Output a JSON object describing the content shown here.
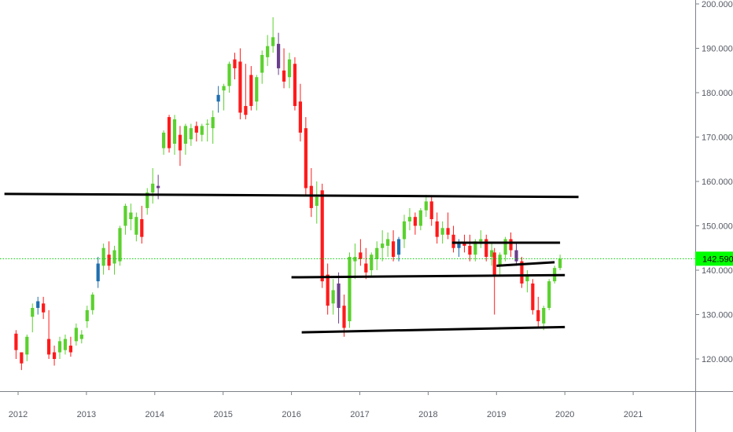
{
  "chart_data": {
    "type": "candlestick",
    "title": "",
    "xlabel": "",
    "ylabel": "",
    "x_ticks": [
      "2012",
      "2013",
      "2014",
      "2015",
      "2016",
      "2017",
      "2018",
      "2019",
      "2020",
      "2021"
    ],
    "y_ticks": [
      "120.000",
      "130.000",
      "140.000",
      "150.000",
      "160.000",
      "170.000",
      "180.000",
      "190.000",
      "200.000"
    ],
    "ylim": [
      112.5,
      200.9
    ],
    "xlim": [
      2011.8,
      2022.0
    ],
    "grid": false,
    "last_price": 142.59,
    "last_price_label": "142.590",
    "colors": {
      "up": "#5bd12e",
      "down": "#ff1a1a",
      "up_dark": "#1f6fb0",
      "down_dark": "#6b3e8c",
      "support_line": "#000000",
      "price_line": "#00cc00",
      "price_tag": "#00ff00"
    },
    "support_lines": [
      {
        "x": [
          2011.8,
          2020.2
        ],
        "y": [
          157.2,
          156.5
        ]
      },
      {
        "x": [
          2016.0,
          2020.0
        ],
        "y": [
          138.4,
          138.9
        ]
      },
      {
        "x": [
          2016.15,
          2020.0
        ],
        "y": [
          126.0,
          127.2
        ]
      },
      {
        "x": [
          2018.35,
          2019.93
        ],
        "y": [
          146.2,
          146.2
        ]
      },
      {
        "x": [
          2019.0,
          2019.85
        ],
        "y": [
          141.0,
          141.8
        ]
      }
    ],
    "candles": [
      [
        2011.97,
        125.7,
        126.5,
        120.0,
        122.0
      ],
      [
        2012.05,
        121.5,
        121.0,
        117.5,
        119.0
      ],
      [
        2012.13,
        121.0,
        125.5,
        119.5,
        125.0
      ],
      [
        2012.21,
        129.5,
        132.5,
        126.0,
        131.5
      ],
      [
        2012.29,
        131.5,
        134.0,
        130.0,
        133.0
      ],
      [
        2012.37,
        132.5,
        134.0,
        129.0,
        130.5
      ],
      [
        2012.45,
        124.5,
        131.0,
        120.0,
        121.0
      ],
      [
        2012.53,
        121.5,
        123.0,
        118.5,
        120.0
      ],
      [
        2012.61,
        121.5,
        125.0,
        120.0,
        124.0
      ],
      [
        2012.69,
        122.0,
        125.5,
        121.0,
        124.5
      ],
      [
        2012.77,
        123.0,
        125.0,
        120.5,
        121.5
      ],
      [
        2012.85,
        124.0,
        128.0,
        123.0,
        127.0
      ],
      [
        2012.93,
        124.5,
        126.5,
        123.5,
        125.5
      ],
      [
        2013.01,
        128.5,
        132.0,
        127.0,
        131.0
      ],
      [
        2013.09,
        131.0,
        135.0,
        130.0,
        134.5
      ],
      [
        2013.17,
        137.5,
        143.0,
        136.0,
        141.5
      ],
      [
        2013.25,
        141.0,
        146.0,
        139.0,
        145.0
      ],
      [
        2013.33,
        143.5,
        146.5,
        140.0,
        141.0
      ],
      [
        2013.41,
        141.5,
        145.5,
        139.0,
        144.5
      ],
      [
        2013.49,
        142.0,
        150.0,
        141.0,
        149.5
      ],
      [
        2013.57,
        150.0,
        155.0,
        148.0,
        154.5
      ],
      [
        2013.65,
        151.5,
        155.0,
        149.0,
        153.0
      ],
      [
        2013.73,
        148.0,
        153.0,
        146.5,
        152.0
      ],
      [
        2013.81,
        151.5,
        154.5,
        146.0,
        147.5
      ],
      [
        2013.89,
        154.0,
        158.5,
        152.5,
        157.5
      ],
      [
        2013.97,
        157.5,
        163.0,
        155.0,
        159.5
      ],
      [
        2014.05,
        159.0,
        161.5,
        156.0,
        158.5
      ],
      [
        2014.13,
        167.5,
        171.5,
        166.0,
        171.0
      ],
      [
        2014.21,
        174.5,
        175.0,
        166.5,
        167.5
      ],
      [
        2014.29,
        168.5,
        175.0,
        166.0,
        174.0
      ],
      [
        2014.37,
        170.5,
        172.5,
        163.5,
        167.0
      ],
      [
        2014.45,
        168.5,
        173.0,
        166.0,
        172.5
      ],
      [
        2014.53,
        169.5,
        173.0,
        168.0,
        172.0
      ],
      [
        2014.61,
        172.5,
        173.5,
        169.0,
        171.0
      ],
      [
        2014.69,
        170.5,
        173.0,
        169.0,
        172.5
      ],
      [
        2014.77,
        173.0,
        174.0,
        169.0,
        173.0
      ],
      [
        2014.85,
        172.0,
        176.0,
        168.5,
        174.5
      ],
      [
        2014.93,
        178.0,
        181.5,
        175.5,
        179.5
      ],
      [
        2015.01,
        180.5,
        182.0,
        176.0,
        181.5
      ],
      [
        2015.09,
        181.5,
        187.0,
        180.0,
        186.5
      ],
      [
        2015.17,
        187.5,
        189.0,
        183.0,
        185.5
      ],
      [
        2015.25,
        187.0,
        190.0,
        174.0,
        175.5
      ],
      [
        2015.33,
        177.0,
        186.5,
        174.0,
        175.0
      ],
      [
        2015.41,
        184.0,
        186.0,
        176.0,
        177.0
      ],
      [
        2015.49,
        178.0,
        184.0,
        176.0,
        183.5
      ],
      [
        2015.57,
        184.5,
        189.5,
        182.0,
        188.5
      ],
      [
        2015.65,
        188.0,
        193.0,
        186.0,
        190.5
      ],
      [
        2015.73,
        190.5,
        197.0,
        189.0,
        192.5
      ],
      [
        2015.81,
        191.0,
        193.5,
        184.0,
        185.5
      ],
      [
        2015.89,
        185.0,
        190.0,
        181.0,
        182.5
      ],
      [
        2015.97,
        183.5,
        189.0,
        181.0,
        187.5
      ],
      [
        2016.05,
        186.5,
        188.0,
        176.0,
        177.0
      ],
      [
        2016.13,
        178.0,
        182.0,
        169.0,
        171.0
      ],
      [
        2016.21,
        172.0,
        174.5,
        157.0,
        158.5
      ],
      [
        2016.29,
        159.0,
        163.0,
        152.0,
        154.0
      ],
      [
        2016.37,
        154.5,
        160.0,
        150.5,
        156.5
      ],
      [
        2016.45,
        158.0,
        159.5,
        136.0,
        137.5
      ],
      [
        2016.53,
        139.0,
        141.5,
        130.0,
        132.0
      ],
      [
        2016.61,
        132.5,
        138.0,
        130.0,
        135.5
      ],
      [
        2016.69,
        137.0,
        139.5,
        128.0,
        131.5
      ],
      [
        2016.77,
        132.0,
        134.5,
        125.0,
        127.0
      ],
      [
        2016.85,
        128.5,
        144.0,
        127.0,
        143.0
      ],
      [
        2016.93,
        142.0,
        146.0,
        138.0,
        143.0
      ],
      [
        2017.01,
        144.0,
        147.0,
        141.0,
        142.5
      ],
      [
        2017.09,
        141.5,
        145.0,
        138.0,
        139.5
      ],
      [
        2017.17,
        140.0,
        144.0,
        138.5,
        143.5
      ],
      [
        2017.25,
        142.5,
        146.5,
        140.0,
        145.0
      ],
      [
        2017.33,
        145.0,
        149.0,
        142.0,
        146.0
      ],
      [
        2017.41,
        145.5,
        148.5,
        143.0,
        147.0
      ],
      [
        2017.49,
        146.5,
        149.0,
        142.0,
        143.0
      ],
      [
        2017.57,
        143.5,
        147.5,
        142.0,
        147.0
      ],
      [
        2017.65,
        147.0,
        152.5,
        145.0,
        151.0
      ],
      [
        2017.73,
        151.0,
        154.0,
        149.0,
        152.0
      ],
      [
        2017.81,
        152.0,
        153.0,
        148.0,
        150.0
      ],
      [
        2017.89,
        150.0,
        154.0,
        149.0,
        153.5
      ],
      [
        2017.97,
        153.5,
        157.0,
        152.0,
        155.5
      ],
      [
        2018.05,
        155.5,
        156.5,
        150.0,
        151.5
      ],
      [
        2018.13,
        151.0,
        153.0,
        146.0,
        147.5
      ],
      [
        2018.21,
        148.0,
        151.0,
        146.0,
        149.5
      ],
      [
        2018.29,
        149.5,
        153.0,
        147.0,
        148.0
      ],
      [
        2018.37,
        148.0,
        150.0,
        144.0,
        145.0
      ],
      [
        2018.45,
        145.0,
        147.0,
        143.0,
        146.0
      ],
      [
        2018.53,
        146.0,
        148.0,
        144.0,
        145.5
      ],
      [
        2018.61,
        145.5,
        148.0,
        142.0,
        143.5
      ],
      [
        2018.69,
        143.5,
        147.0,
        142.0,
        146.5
      ],
      [
        2018.77,
        146.5,
        149.0,
        145.0,
        147.0
      ],
      [
        2018.85,
        147.0,
        148.0,
        142.0,
        143.0
      ],
      [
        2018.93,
        143.0,
        146.0,
        141.0,
        144.5
      ],
      [
        2018.97,
        144.0,
        145.0,
        130.0,
        139.0
      ],
      [
        2019.05,
        141.0,
        144.0,
        139.0,
        143.5
      ],
      [
        2019.13,
        143.5,
        147.5,
        142.0,
        147.0
      ],
      [
        2019.21,
        147.0,
        148.5,
        143.0,
        144.5
      ],
      [
        2019.29,
        144.5,
        146.0,
        141.0,
        142.0
      ],
      [
        2019.37,
        142.0,
        143.0,
        136.0,
        137.0
      ],
      [
        2019.45,
        137.5,
        140.0,
        135.0,
        139.0
      ],
      [
        2019.53,
        137.0,
        138.0,
        130.0,
        131.0
      ],
      [
        2019.61,
        131.0,
        134.0,
        127.0,
        128.5
      ],
      [
        2019.69,
        128.0,
        132.0,
        126.5,
        131.5
      ],
      [
        2019.77,
        131.5,
        138.0,
        131.0,
        137.5
      ],
      [
        2019.85,
        137.5,
        141.0,
        137.0,
        140.5
      ],
      [
        2019.93,
        140.5,
        143.5,
        140.0,
        142.59
      ]
    ]
  }
}
